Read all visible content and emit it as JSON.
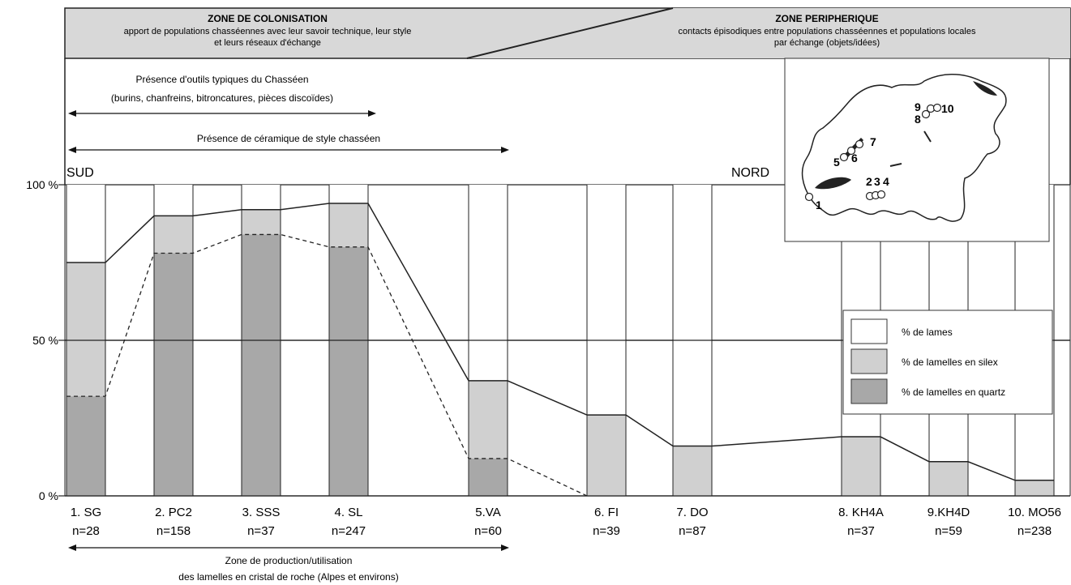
{
  "header": {
    "left_title": "ZONE DE COLONISATION",
    "left_line1": "apport de populations chasséennes avec leur savoir technique, leur style",
    "left_line2": "et leurs réseaux d'échange",
    "right_title": "ZONE  PERIPHERIQUE",
    "right_line1": "contacts épisodiques entre populations chasséennes et populations locales",
    "right_line2": "par échange (objets/idées)"
  },
  "annotations": {
    "tools_line1": "Présence d'outils typiques du Chasséen",
    "tools_line2": "(burins, chanfreins, bitroncatures, pièces discoïdes)",
    "ceramic": "Présence de céramique de style chasséen",
    "crystal_line1": "Zone de production/utilisation",
    "crystal_line2": "des lamelles en cristal de roche (Alpes et environs)",
    "sud": "SUD",
    "nord": "NORD"
  },
  "map": {
    "labels": [
      "1",
      "2",
      "3",
      "4",
      "5",
      "6",
      "7",
      "8",
      "9",
      "10"
    ]
  },
  "legend": {
    "items": [
      {
        "label": "% de lames",
        "color": "#ffffff"
      },
      {
        "label": "% de lamelles en silex",
        "color": "#d0d0d0"
      },
      {
        "label": "% de lamelles en quartz",
        "color": "#a8a8a8"
      }
    ]
  },
  "chart_data": {
    "type": "bar",
    "categories": [
      "1. SG",
      "2. PC2",
      "3. SSS",
      "4. SL",
      "5.VA",
      "6. FI",
      "7. DO",
      "8. KH4A",
      "9.KH4D",
      "10. MO56"
    ],
    "counts": [
      "n=28",
      "n=158",
      "n=37",
      "n=247",
      "n=60",
      "n=39",
      "n=87",
      "n=37",
      "n=59",
      "n=238"
    ],
    "y_ticks": [
      "100 %",
      "50 %",
      "0 %"
    ],
    "ylim": [
      0,
      100
    ],
    "series": [
      {
        "name": "% de lamelles en quartz",
        "values": [
          32,
          78,
          84,
          80,
          12,
          0,
          0,
          0,
          0,
          0
        ]
      },
      {
        "name": "% de lamelles en silex",
        "values": [
          43,
          12,
          8,
          14,
          25,
          26,
          16,
          19,
          11,
          5
        ]
      },
      {
        "name": "% de lames",
        "values": [
          25,
          10,
          8,
          6,
          63,
          74,
          84,
          81,
          89,
          95
        ]
      }
    ],
    "colors": {
      "lames": "#ffffff",
      "silex": "#d0d0d0",
      "quartz": "#a8a8a8"
    }
  }
}
